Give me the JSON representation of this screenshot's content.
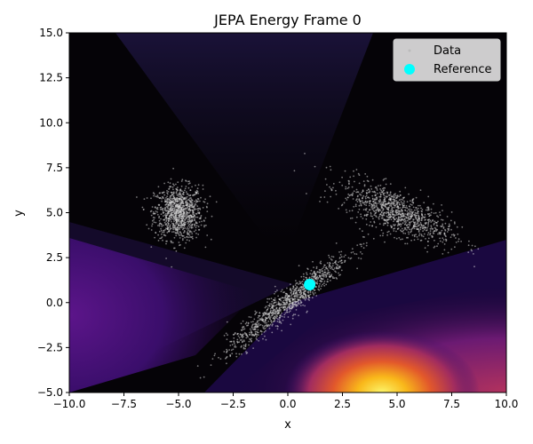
{
  "chart_data": {
    "type": "scatter",
    "title": "JEPA Energy Frame 0",
    "xlabel": "x",
    "ylabel": "y",
    "xlim": [
      -10,
      10
    ],
    "ylim": [
      -5,
      15
    ],
    "xticks": [
      -10,
      -7.5,
      -5,
      -2.5,
      0,
      2.5,
      5,
      7.5,
      10
    ],
    "xtick_labels": [
      "−10.0",
      "−7.5",
      "−5.0",
      "−2.5",
      "0.0",
      "2.5",
      "5.0",
      "7.5",
      "10.0"
    ],
    "yticks": [
      -5,
      -2.5,
      0,
      2.5,
      5,
      7.5,
      10,
      12.5,
      15
    ],
    "ytick_labels": [
      "−5.0",
      "−2.5",
      "0.0",
      "2.5",
      "5.0",
      "7.5",
      "10.0",
      "12.5",
      "15.0"
    ],
    "legend_position": "upper-right",
    "background": "filled energy contour (inferno colormap): black over most of the plane, purple wedge on the left, bright yellow-orange hot spot near bottom center-right",
    "series": [
      {
        "name": "Data",
        "kind": "scatter",
        "color": "#d9d9d9",
        "clusters": [
          {
            "center": [
              -5.0,
              5.0
            ],
            "spread": [
              0.55,
              0.75
            ],
            "correlation": 0,
            "approx_points": 1000
          },
          {
            "center": [
              5.0,
              5.0
            ],
            "spread": [
              1.25,
              0.85
            ],
            "correlation": -0.7,
            "approx_points": 1000
          },
          {
            "center": [
              0.0,
              0.0
            ],
            "spread": [
              1.4,
              1.4
            ],
            "correlation": 0.95,
            "approx_points": 1000
          }
        ]
      },
      {
        "name": "Reference",
        "kind": "marker",
        "color": "#00ffff",
        "points": [
          [
            1.0,
            1.0
          ]
        ]
      }
    ]
  }
}
